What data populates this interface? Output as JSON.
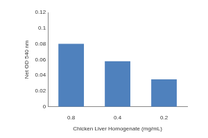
{
  "chart_data": {
    "type": "bar",
    "xlabel": "Chicken Liver Homogenate (mg/mL)",
    "ylabel": "Net OD 540 nm",
    "categories": [
      "0.8",
      "0.4",
      "0.2"
    ],
    "values": [
      0.08,
      0.058,
      0.035
    ],
    "color": "#4f81bd",
    "ylim": [
      0,
      0.12
    ],
    "yticks": [
      0,
      0.02,
      0.04,
      0.06,
      0.08,
      0.1,
      0.12
    ],
    "grid": false
  }
}
